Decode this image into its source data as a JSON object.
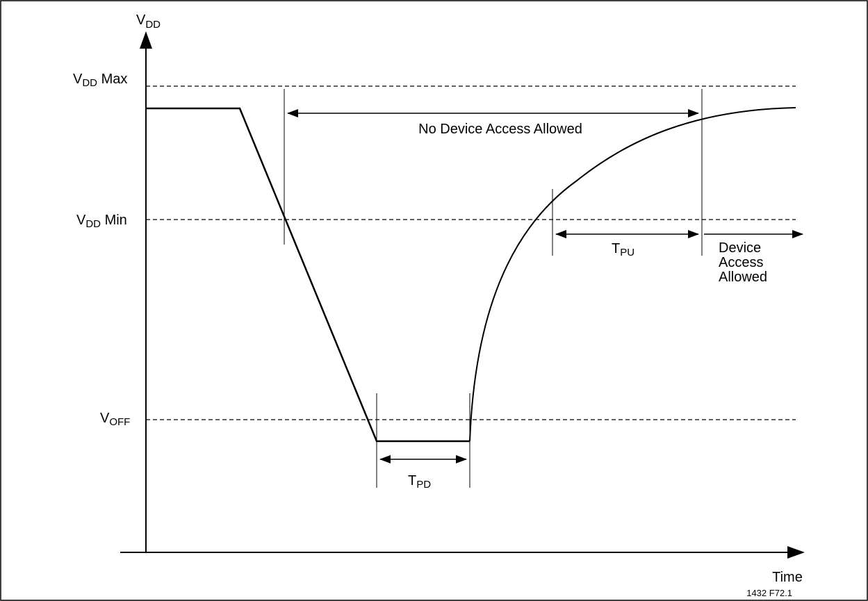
{
  "diagram": {
    "axes": {
      "y_label": {
        "main": "V",
        "sub": "DD"
      },
      "x_label": "Time"
    },
    "levels": {
      "vdd_max": {
        "main": "V",
        "sub": "DD",
        "suffix": " Max"
      },
      "vdd_min": {
        "main": "V",
        "sub": "DD",
        "suffix": " Min"
      },
      "voff": {
        "main": "V",
        "sub": "OFF"
      }
    },
    "annotations": {
      "no_access": "No Device Access Allowed",
      "tpu": {
        "main": "T",
        "sub": "PU"
      },
      "tpd": {
        "main": "T",
        "sub": "PD"
      },
      "device_access": [
        "Device",
        "Access",
        "Allowed"
      ]
    },
    "figure_id": "1432 F72.1"
  }
}
